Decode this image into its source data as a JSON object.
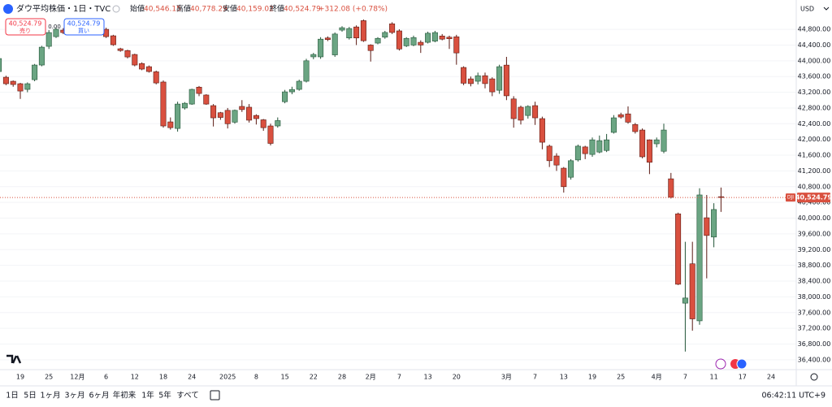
{
  "header": {
    "title": "ダウ平均株価・1日・TVC",
    "open_label": "始値",
    "open": "40,546.15",
    "high_label": "高値",
    "high": "40,778.29",
    "low_label": "安値",
    "low": "40,159.02",
    "close_label": "終値",
    "close": "40,524.79",
    "change": "+312.08 (+0.78%)"
  },
  "trade": {
    "sell_price": "40,524.79",
    "sell": "売り",
    "spread": "0.00",
    "buy_price": "40,524.79",
    "buy": "買い"
  },
  "currency": "USD",
  "symbol_tag": "DJI",
  "toolbar": [
    "1日",
    "5日",
    "1ヶ月",
    "3ヶ月",
    "6ヶ月",
    "年初来",
    "1年",
    "5年",
    "すべて"
  ],
  "clock": "06:42:11 UTC+9",
  "chart_data": {
    "type": "candlestick",
    "up_color": "#6ba583",
    "down_color": "#d9503f",
    "categories": [
      null,
      null,
      null,
      "19",
      null,
      null,
      null,
      "25",
      null,
      null,
      null,
      "12月",
      null,
      null,
      null,
      "6",
      null,
      null,
      null,
      "12",
      null,
      null,
      null,
      "18",
      null,
      null,
      null,
      "24",
      null,
      null,
      null,
      null,
      "2025",
      null,
      null,
      null,
      "8",
      null,
      null,
      null,
      "15",
      null,
      null,
      null,
      "22",
      null,
      null,
      null,
      "28",
      null,
      null,
      null,
      "2月",
      null,
      null,
      null,
      "7",
      null,
      null,
      null,
      "13",
      null,
      null,
      null,
      "20",
      null,
      null,
      null,
      null,
      null,
      null,
      "3月",
      null,
      null,
      null,
      "7",
      null,
      null,
      null,
      "13",
      null,
      null,
      null,
      "19",
      null,
      null,
      null,
      "25",
      null,
      null,
      null,
      null,
      "4月",
      null,
      null,
      null,
      "7",
      null,
      null,
      null,
      "11",
      null,
      null,
      null,
      "17",
      null,
      null,
      null,
      "24"
    ],
    "open": [
      43727,
      43582,
      43479,
      43417,
      43273,
      43520,
      43892,
      44367,
      44614,
      44780,
      44760,
      44860,
      44860,
      44900,
      45000,
      44800,
      44635,
      44305,
      44260,
      44160,
      43930,
      43850,
      43720,
      43460,
      42447,
      42280,
      42800,
      42900,
      43330,
      43130,
      42860,
      42680,
      42740,
      42440,
      42840,
      42820,
      42610,
      42500,
      42344,
      42344,
      42960,
      43210,
      43273,
      43480,
      44100,
      44100,
      44580,
      44150,
      44780,
      44580,
      44860,
      45020,
      44400,
      44450,
      44600,
      44940,
      44760,
      44380,
      44400,
      44470,
      44470,
      44500,
      44630,
      44600,
      44610,
      43830,
      43540,
      43480,
      43620,
      43540,
      43250,
      43890,
      43030,
      42820,
      42610,
      42860,
      42530,
      41830,
      41580,
      41270,
      41040,
      41480,
      41810,
      41620,
      41680,
      41720,
      42180,
      42630,
      42650,
      42380,
      42240,
      41990,
      41890,
      41700,
      41000,
      40110,
      37840,
      38840,
      37390,
      40010,
      39520,
      40546.15,
      null,
      null,
      null,
      null,
      null,
      null,
      null
    ],
    "high": [
      44100,
      43620,
      43500,
      43440,
      43450,
      43920,
      44380,
      44780,
      44850,
      44830,
      44860,
      44900,
      44960,
      45000,
      45050,
      44840,
      44660,
      44330,
      44280,
      44180,
      43960,
      43880,
      43750,
      43500,
      42560,
      42960,
      42950,
      43290,
      43360,
      43150,
      42900,
      42700,
      42800,
      42760,
      43000,
      42900,
      42640,
      42520,
      42400,
      42560,
      43260,
      43340,
      43520,
      44050,
      44200,
      44600,
      44620,
      44720,
      44880,
      44860,
      44900,
      45050,
      44420,
      44600,
      44760,
      44980,
      44800,
      44600,
      44640,
      44520,
      44740,
      44760,
      44680,
      44640,
      44660,
      43860,
      43600,
      43700,
      43700,
      43580,
      43900,
      44100,
      43100,
      42860,
      42870,
      42960,
      42580,
      41870,
      41650,
      41300,
      41500,
      41870,
      41840,
      42050,
      42100,
      42140,
      42620,
      42680,
      42840,
      42420,
      42280,
      42000,
      42050,
      42400,
      41150,
      40140,
      39400,
      39400,
      40760,
      40590,
      40380,
      40778.29,
      null,
      null,
      null,
      null,
      null,
      null,
      null
    ],
    "low": [
      43650,
      43380,
      43340,
      43030,
      43200,
      43480,
      43860,
      44300,
      44580,
      44680,
      44740,
      44760,
      44830,
      44870,
      44780,
      44580,
      44380,
      44230,
      44060,
      43860,
      43760,
      43700,
      43400,
      42300,
      42250,
      42200,
      42760,
      42880,
      43100,
      42880,
      42330,
      42500,
      42280,
      42400,
      42700,
      42430,
      42380,
      42220,
      41850,
      42300,
      42920,
      43150,
      43240,
      43450,
      44040,
      44050,
      44500,
      44100,
      44740,
      44540,
      44400,
      44480,
      43980,
      44420,
      44560,
      44680,
      44260,
      44350,
      44370,
      44200,
      44440,
      44470,
      44520,
      44300,
      43900,
      43380,
      43350,
      43400,
      43300,
      43100,
      43160,
      43000,
      42300,
      42380,
      42530,
      42370,
      41750,
      41300,
      41200,
      40650,
      40980,
      41440,
      41500,
      41560,
      41650,
      41680,
      42150,
      42530,
      42400,
      42150,
      41520,
      41120,
      41800,
      41650,
      40500,
      38300,
      36610,
      37140,
      37290,
      38470,
      39260,
      40159.02,
      null,
      null,
      null,
      null,
      null,
      null,
      null
    ],
    "close": [
      44057,
      43417,
      43397,
      43231,
      43417,
      43892,
      44346,
      44717,
      44800,
      44717,
      44820,
      44800,
      44920,
      44965,
      44820,
      44614,
      44408,
      44260,
      44098,
      43892,
      43789,
      43727,
      43437,
      42344,
      42300,
      42900,
      42920,
      43273,
      43169,
      42900,
      42550,
      42560,
      42400,
      42740,
      42760,
      42490,
      42530,
      42300,
      41900,
      42480,
      43210,
      43270,
      43480,
      44000,
      44160,
      44550,
      44540,
      44680,
      44840,
      44820,
      44580,
      44510,
      44260,
      44570,
      44720,
      44720,
      44300,
      44570,
      44590,
      44400,
      44700,
      44717,
      44550,
      44560,
      44200,
      43430,
      43420,
      43620,
      43420,
      43210,
      43850,
      43110,
      42530,
      42490,
      42840,
      42550,
      41930,
      41460,
      41350,
      40800,
      41460,
      41830,
      41640,
      41990,
      41970,
      41990,
      42550,
      42570,
      42440,
      42200,
      41560,
      41420,
      41990,
      42240,
      40530,
      38320,
      37970,
      37440,
      40590,
      39560,
      40220,
      40524.79,
      null,
      null,
      null,
      null,
      null,
      null,
      null
    ],
    "last_price_label": "40,524.79",
    "ylim": [
      36150,
      45545
    ],
    "yticks": [
      {
        "value": 36400,
        "label": "36,400.00"
      },
      {
        "value": 36800,
        "label": "36,800.00"
      },
      {
        "value": 37200,
        "label": "37,200.00"
      },
      {
        "value": 37600,
        "label": "37,600.00"
      },
      {
        "value": 38000,
        "label": "38,000.00"
      },
      {
        "value": 38400,
        "label": "38,400.00"
      },
      {
        "value": 38800,
        "label": "38,800.00"
      },
      {
        "value": 39200,
        "label": "39,200.00"
      },
      {
        "value": 39600,
        "label": "39,600.00"
      },
      {
        "value": 40000,
        "label": "40,000.00"
      },
      {
        "value": 40400,
        "label": "40,400.00"
      },
      {
        "value": 40800,
        "label": "40,800.00"
      },
      {
        "value": 41200,
        "label": "41,200.00"
      },
      {
        "value": 41600,
        "label": "41,600.00"
      },
      {
        "value": 42000,
        "label": "42,000.00"
      },
      {
        "value": 42400,
        "label": "42,400.00"
      },
      {
        "value": 42800,
        "label": "42,800.00"
      },
      {
        "value": 43200,
        "label": "43,200.00"
      },
      {
        "value": 43600,
        "label": "43,600.00"
      },
      {
        "value": 44000,
        "label": "44,000.00"
      },
      {
        "value": 44400,
        "label": "44,400.00"
      },
      {
        "value": 44800,
        "label": "44,800.00"
      }
    ]
  }
}
